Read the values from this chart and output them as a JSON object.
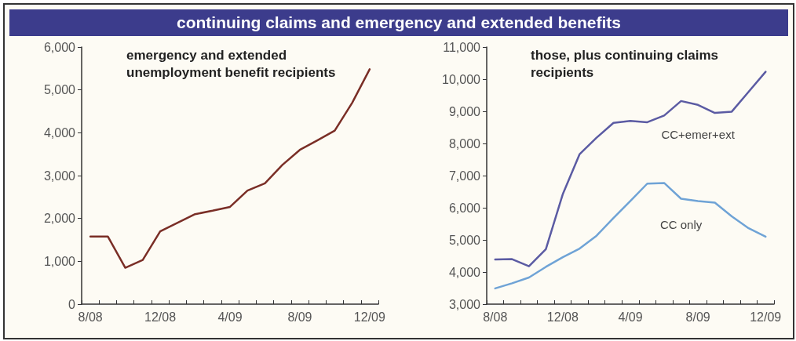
{
  "chart_data": [
    {
      "type": "line",
      "title": "continuing claims and emergency and extended benefits",
      "subtitle": "emergency and extended unemployment benefit recipients",
      "categories": [
        "8/08",
        null,
        null,
        null,
        "12/08",
        null,
        null,
        null,
        "4/09",
        null,
        null,
        null,
        "8/09",
        null,
        null,
        null,
        "12/09"
      ],
      "series": [
        {
          "color": "#7a2e26",
          "values": [
            1580,
            1580,
            850,
            1030,
            1700,
            1900,
            2100,
            2180,
            2270,
            2650,
            2820,
            3250,
            3600,
            3820,
            4050,
            4700,
            5480
          ]
        }
      ],
      "ylim": [
        0,
        6000
      ],
      "yticks": [
        0,
        {
          "value": 1000,
          "label": "1,000"
        },
        {
          "value": 2000,
          "label": "2,000"
        },
        {
          "value": 3000,
          "label": "3,000"
        },
        {
          "value": 4000,
          "label": "4,000"
        },
        {
          "value": 5000,
          "label": "5,000"
        },
        {
          "value": 6000,
          "label": "6,000"
        }
      ]
    },
    {
      "type": "line",
      "subtitle": "those, plus continuing claims recipients",
      "categories": [
        "8/08",
        null,
        null,
        null,
        "12/08",
        null,
        null,
        null,
        "4/09",
        null,
        null,
        null,
        "8/09",
        null,
        null,
        null,
        "12/09"
      ],
      "series": [
        {
          "name": "CC+emer+ext",
          "color": "#5b5ba3",
          "values": [
            4390,
            4400,
            4180,
            4710,
            6420,
            7670,
            8180,
            8640,
            8700,
            8660,
            8870,
            9320,
            9200,
            8950,
            8990,
            9610,
            10230
          ]
        },
        {
          "name": "CC only",
          "color": "#6fa3d6",
          "values": [
            3490,
            3650,
            3830,
            4160,
            4460,
            4730,
            5130,
            5680,
            6210,
            6750,
            6770,
            6280,
            6210,
            6160,
            5730,
            5360,
            5100
          ]
        }
      ],
      "ylim": [
        3000,
        11000
      ],
      "yticks": [
        {
          "value": 3000,
          "label": "3,000"
        },
        {
          "value": 4000,
          "label": "4,000"
        },
        {
          "value": 5000,
          "label": "5,000"
        },
        {
          "value": 6000,
          "label": "6,000"
        },
        {
          "value": 7000,
          "label": "7,000"
        },
        {
          "value": 8000,
          "label": "8,000"
        },
        {
          "value": 9000,
          "label": "9,000"
        },
        {
          "value": 10000,
          "label": "10,000"
        },
        {
          "value": 11000,
          "label": "11,000"
        }
      ]
    }
  ]
}
